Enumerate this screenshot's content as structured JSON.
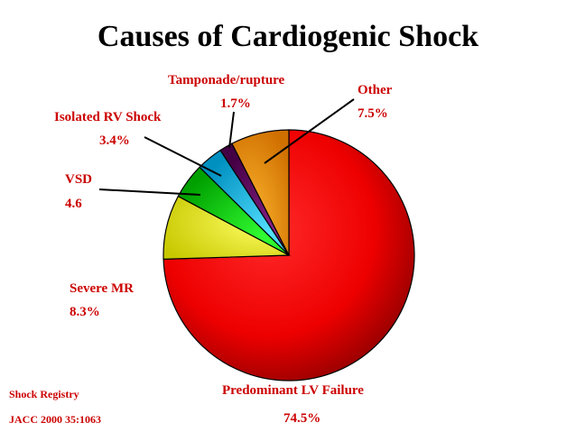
{
  "chart_data": {
    "type": "pie",
    "title": "Causes of Cardiogenic Shock",
    "slices": [
      {
        "label": "Predominant LV Failure",
        "value": 74.5,
        "value_label": "74.5%",
        "color": "#ff0000"
      },
      {
        "label": "Severe MR",
        "value": 8.3,
        "value_label": "8.3%",
        "color": "#ffff00"
      },
      {
        "label": "VSD",
        "value": 4.6,
        "value_label": "4.6",
        "color": "#00dd00"
      },
      {
        "label": "Isolated RV Shock",
        "value": 3.4,
        "value_label": "3.4%",
        "color": "#00bbee"
      },
      {
        "label": "Tamponade/rupture",
        "value": 1.7,
        "value_label": "1.7%",
        "color": "#660066"
      },
      {
        "label": "Other",
        "value": 7.5,
        "value_label": "7.5%",
        "color": "#ff9900"
      }
    ]
  },
  "source": {
    "line1": "Shock Registry",
    "line2": "JACC 2000 35:1063"
  }
}
